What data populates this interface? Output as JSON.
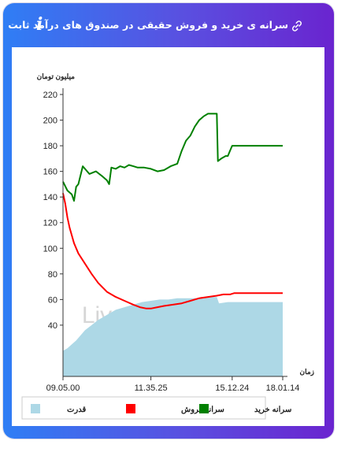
{
  "header": {
    "title": "سرانه ی خرید و فروش حقیقی در صندوق های درآمد ثابت",
    "link_icon": "link-icon",
    "info_icon": "info-icon",
    "info_glyph": "i"
  },
  "watermark": "LiveTSE.ir",
  "chart_data": {
    "type": "line",
    "ylabel": "میلیون تومان",
    "xlabel": "زمان",
    "yticks": [
      40,
      60,
      80,
      100,
      120,
      140,
      160,
      180,
      200,
      220
    ],
    "ylim": [
      0,
      220
    ],
    "xtick_labels": [
      "09.05.00",
      "11.35.25",
      "15.12.24",
      "18.01.14"
    ],
    "xtick_positions": [
      0,
      0.4,
      0.77,
      1.0
    ],
    "legend_position": "bottom",
    "series": [
      {
        "name": "سرانه خرید",
        "color": "#008000",
        "x": [
          0,
          0.02,
          0.04,
          0.05,
          0.06,
          0.07,
          0.09,
          0.12,
          0.15,
          0.18,
          0.2,
          0.21,
          0.22,
          0.24,
          0.26,
          0.28,
          0.3,
          0.32,
          0.34,
          0.37,
          0.4,
          0.43,
          0.46,
          0.49,
          0.52,
          0.54,
          0.56,
          0.58,
          0.6,
          0.62,
          0.64,
          0.66,
          0.68,
          0.7,
          0.705,
          0.72,
          0.74,
          0.75,
          0.76,
          0.77,
          0.79,
          0.82,
          0.86,
          0.9,
          0.95,
          1.0
        ],
        "y": [
          152,
          145,
          142,
          137,
          148,
          150,
          164,
          158,
          160,
          156,
          153,
          150,
          163,
          162,
          164,
          163,
          165,
          164,
          163,
          163,
          162,
          160,
          161,
          164,
          166,
          176,
          184,
          188,
          195,
          200,
          203,
          205,
          205,
          205,
          168,
          170,
          172,
          172,
          176,
          180,
          180,
          180,
          180,
          180,
          180,
          180
        ]
      },
      {
        "name": "سرانه فروش",
        "color": "#ff0000",
        "x": [
          0,
          0.01,
          0.02,
          0.03,
          0.05,
          0.07,
          0.1,
          0.13,
          0.16,
          0.2,
          0.24,
          0.28,
          0.32,
          0.35,
          0.38,
          0.4,
          0.43,
          0.46,
          0.5,
          0.54,
          0.58,
          0.62,
          0.66,
          0.7,
          0.73,
          0.76,
          0.78,
          0.82,
          0.88,
          0.94,
          1.0
        ],
        "y": [
          143,
          135,
          124,
          116,
          104,
          96,
          88,
          80,
          73,
          66,
          62,
          59,
          56,
          54,
          53,
          53,
          54,
          55,
          56,
          57,
          59,
          61,
          62,
          63,
          64,
          64,
          65,
          65,
          65,
          65,
          65
        ]
      },
      {
        "name": "قدرت",
        "color": "#add8e6",
        "type": "area",
        "x": [
          0,
          0.02,
          0.04,
          0.06,
          0.08,
          0.1,
          0.13,
          0.16,
          0.2,
          0.24,
          0.28,
          0.32,
          0.36,
          0.4,
          0.44,
          0.48,
          0.52,
          0.56,
          0.6,
          0.64,
          0.68,
          0.7,
          0.71,
          0.75,
          0.8,
          0.86,
          0.92,
          1.0
        ],
        "y": [
          20,
          22,
          25,
          28,
          32,
          36,
          40,
          44,
          48,
          52,
          54,
          56,
          58,
          59,
          60,
          60,
          61,
          61,
          61,
          61,
          62,
          62,
          57,
          58,
          58,
          58,
          58,
          58
        ]
      }
    ]
  }
}
